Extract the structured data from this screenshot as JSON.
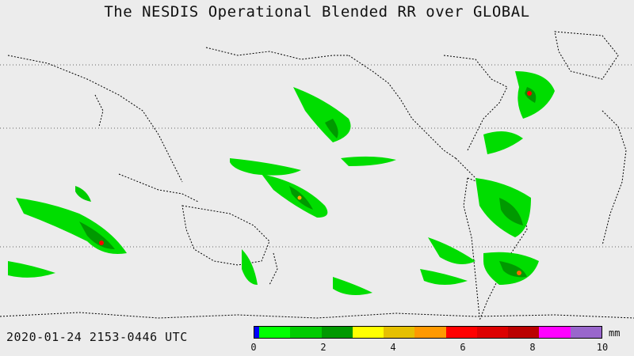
{
  "title": "The NESDIS  Operational  Blended RR over GLOBAL",
  "datetime": "2020-01-24  2153-0446  UTC",
  "colorbar": {
    "unit": "mm",
    "ticks": [
      "0",
      "2",
      "4",
      "6",
      "8",
      "10"
    ],
    "colors": [
      "#0000ff",
      "#00ff00",
      "#00cc00",
      "#009900",
      "#ffff00",
      "#e6c000",
      "#ff9900",
      "#ff0000",
      "#dd0000",
      "#bb0000",
      "#ff00ff",
      "#9966cc"
    ]
  },
  "map": {
    "background": "#ececec",
    "coastline_color": "#000000",
    "gridline_color": "#666666"
  }
}
